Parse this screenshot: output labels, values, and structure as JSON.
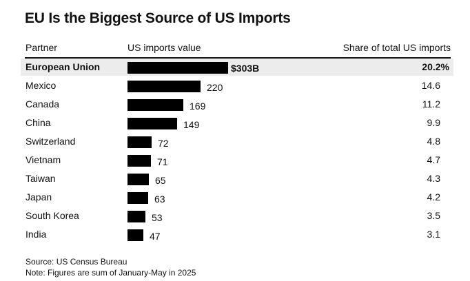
{
  "header": {
    "title": "EU Is the Biggest Source of US Imports",
    "col_partner": "Partner",
    "col_value": "US imports value",
    "col_share": "Share of total US imports"
  },
  "chart_data": {
    "type": "table",
    "title": "EU Is the Biggest Source of US Imports",
    "columns": [
      "Partner",
      "US imports value",
      "Share of total US imports"
    ],
    "unit": "$B",
    "rows": [
      {
        "partner": "European Union",
        "value": 303,
        "value_label": "$303B",
        "share": "20.2%",
        "highlight": true
      },
      {
        "partner": "Mexico",
        "value": 220,
        "value_label": "220",
        "share": "14.6"
      },
      {
        "partner": "Canada",
        "value": 169,
        "value_label": "169",
        "share": "11.2"
      },
      {
        "partner": "China",
        "value": 149,
        "value_label": "149",
        "share": "9.9"
      },
      {
        "partner": "Switzerland",
        "value": 72,
        "value_label": "72",
        "share": "4.8"
      },
      {
        "partner": "Vietnam",
        "value": 71,
        "value_label": "71",
        "share": "4.7"
      },
      {
        "partner": "Taiwan",
        "value": 65,
        "value_label": "65",
        "share": "4.3"
      },
      {
        "partner": "Japan",
        "value": 63,
        "value_label": "63",
        "share": "4.2"
      },
      {
        "partner": "South Korea",
        "value": 53,
        "value_label": "53",
        "share": "3.5"
      },
      {
        "partner": "India",
        "value": 47,
        "value_label": "47",
        "share": "3.1"
      }
    ],
    "max_value": 303
  },
  "footer": {
    "source": "Source: US Census Bureau",
    "note": "Note: Figures are sum of January-May in 2025"
  },
  "colors": {
    "bar": "#000000",
    "highlight_row": "#ececec"
  }
}
